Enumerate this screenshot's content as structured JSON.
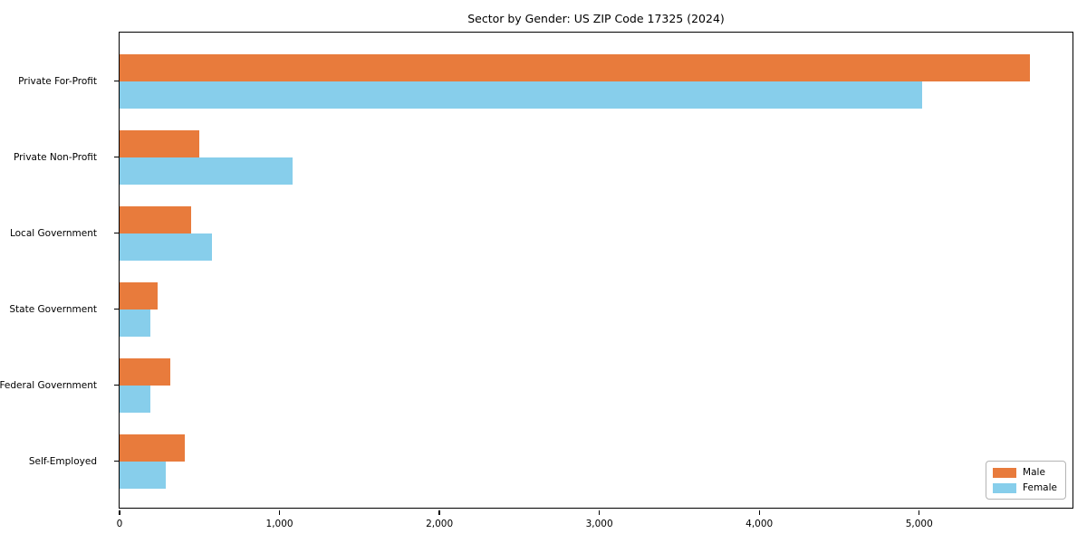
{
  "chart_data": {
    "type": "bar",
    "orientation": "horizontal",
    "title": "Sector by Gender: US ZIP Code 17325 (2024)",
    "categories": [
      "Private For-Profit",
      "Private Non-Profit",
      "Local Government",
      "State Government",
      "Federal Government",
      "Self-Employed"
    ],
    "series": [
      {
        "name": "Male",
        "color": "#e87b3c",
        "values": [
          5690,
          500,
          450,
          240,
          320,
          410
        ]
      },
      {
        "name": "Female",
        "color": "#87ceeb",
        "values": [
          5020,
          1080,
          580,
          190,
          190,
          290
        ]
      }
    ],
    "xlabel": "",
    "ylabel": "",
    "xlim": [
      0,
      5970
    ],
    "xticks": [
      0,
      1000,
      2000,
      3000,
      4000,
      5000
    ],
    "xtick_labels": [
      "0",
      "1,000",
      "2,000",
      "3,000",
      "4,000",
      "5,000"
    ],
    "grid": false,
    "legend": {
      "position": "lower right",
      "entries": [
        "Male",
        "Female"
      ]
    }
  }
}
